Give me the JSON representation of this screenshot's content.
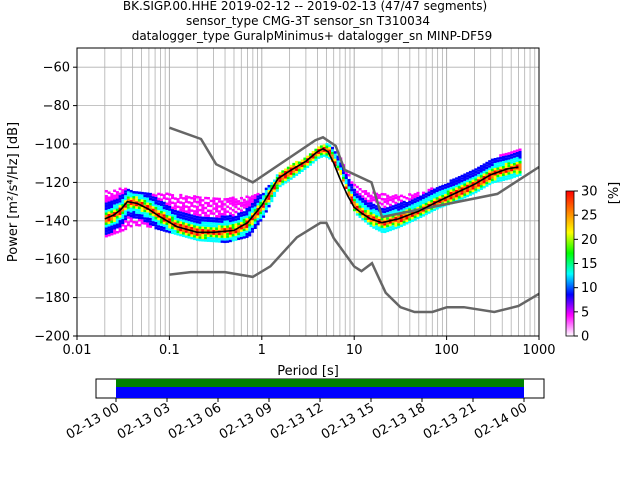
{
  "title": {
    "line1": "BK.SIGP.00.HHE   2019-02-12 -- 2019-02-13  (47/47 segments)",
    "line2": "sensor_type CMG-3T sensor_sn T310034",
    "line3": "datalogger_type GuralpMinimus+ datalogger_sn MINP-DF59"
  },
  "chart_data": {
    "type": "heatmap",
    "subtype": "probabilistic power spectral density",
    "xlabel": "Period [s]",
    "ylabel": "Power [m²/s⁴/Hz] [dB]",
    "x_scale": "log",
    "xlim": [
      0.01,
      1000
    ],
    "ylim": [
      -200,
      -50
    ],
    "x_ticks": [
      0.01,
      0.1,
      1,
      10,
      100,
      1000
    ],
    "x_tick_labels": [
      "0.01",
      "0.1",
      "1",
      "10",
      "100",
      "1000"
    ],
    "y_ticks": [
      -200,
      -180,
      -160,
      -140,
      -120,
      -100,
      -80,
      -60
    ],
    "y_tick_labels": [
      "−200",
      "−180",
      "−160",
      "−140",
      "−120",
      "−100",
      "−80",
      "−60"
    ],
    "grid": true,
    "noise_model_color": "#666666",
    "median_color": "#000000",
    "high_noise_model": {
      "period": [
        0.1,
        0.22,
        0.32,
        0.8,
        3.8,
        4.6,
        6.3,
        7.9,
        15.4,
        20,
        354.8,
        1000
      ],
      "db": [
        -91.5,
        -97.4,
        -110.5,
        -120,
        -98,
        -96.5,
        -101,
        -113.5,
        -120,
        -138,
        -126,
        -112
      ]
    },
    "low_noise_model": {
      "period": [
        0.1,
        0.17,
        0.4,
        0.8,
        1.24,
        2.4,
        4.3,
        5,
        6,
        10,
        12,
        15.6,
        21.9,
        31.6,
        45,
        70,
        101,
        154,
        328,
        600,
        1000
      ],
      "db": [
        -168,
        -166.7,
        -166.7,
        -169.2,
        -163.7,
        -148.6,
        -141.1,
        -141.1,
        -149,
        -163.8,
        -166.2,
        -162.1,
        -177.5,
        -185,
        -187.5,
        -187.5,
        -185,
        -185,
        -187.5,
        -184.4,
        -178
      ]
    },
    "median": {
      "period": [
        0.02,
        0.025,
        0.03,
        0.035,
        0.045,
        0.06,
        0.08,
        0.12,
        0.2,
        0.3,
        0.5,
        0.7,
        1.0,
        1.5,
        2.0,
        3.0,
        4.0,
        4.6,
        5.2,
        6.0,
        7.0,
        8.5,
        10,
        12,
        15,
        20,
        30,
        50,
        80,
        120,
        200,
        300,
        450,
        600
      ],
      "db": [
        -139,
        -137,
        -134,
        -130,
        -131,
        -134,
        -138,
        -143,
        -146,
        -146,
        -145,
        -141,
        -132,
        -118,
        -114,
        -109,
        -104,
        -102.5,
        -104,
        -110,
        -118,
        -127,
        -133,
        -136,
        -139,
        -141,
        -139,
        -135,
        -130,
        -126,
        -121,
        -116,
        -113,
        -112
      ]
    },
    "ppsd_band_shape": {
      "period": [
        0.02,
        0.03,
        0.04,
        0.06,
        0.1,
        0.2,
        0.4,
        0.7,
        1,
        1.5,
        2,
        3,
        4,
        4.6,
        5.5,
        7,
        10,
        15,
        20,
        30,
        50,
        80,
        120,
        200,
        300,
        450,
        600
      ],
      "upper_db": [
        -124,
        -123,
        -124,
        -125,
        -126,
        -127,
        -128,
        -127,
        -125,
        -115,
        -111,
        -106,
        -101,
        -99.5,
        -101,
        -108,
        -122,
        -125,
        -126,
        -127,
        -125,
        -122,
        -118,
        -113,
        -108,
        -104,
        -102
      ],
      "lower_db": [
        -148,
        -145,
        -142,
        -143,
        -146,
        -150,
        -151,
        -148,
        -138,
        -122,
        -118,
        -112,
        -107,
        -106,
        -108,
        -116,
        -136,
        -143,
        -146,
        -143,
        -138,
        -133,
        -130,
        -125,
        -120,
        -118,
        -116
      ]
    },
    "colorbar": {
      "label": "[%]",
      "range": [
        0,
        30
      ],
      "ticks": [
        0,
        5,
        10,
        15,
        20,
        25,
        30
      ],
      "tick_labels": [
        "0",
        "5",
        "10",
        "15",
        "20",
        "25",
        "30"
      ],
      "colormap": [
        "#ffffff",
        "#ff00ff",
        "#0000ff",
        "#00ffff",
        "#00ff00",
        "#ffff00",
        "#ff8000",
        "#ff0000"
      ]
    }
  },
  "coverage_chart": {
    "type": "timeline",
    "x_tick_labels": [
      "02-13 00",
      "02-13 03",
      "02-13 06",
      "02-13 09",
      "02-13 12",
      "02-13 15",
      "02-13 18",
      "02-13 21",
      "02-14 00"
    ],
    "covered_start_hour": 0,
    "covered_end_hour": 24,
    "data_color": "#008000",
    "used_color": "#0000ff"
  }
}
